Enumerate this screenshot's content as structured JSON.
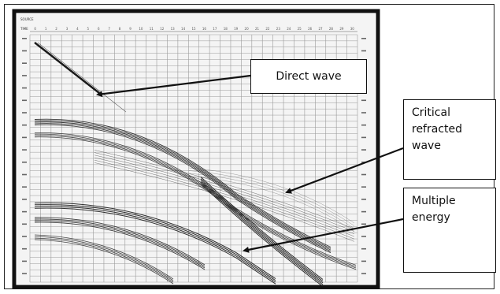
{
  "figure": {
    "top_ruler_label": "SOURCE",
    "second_ruler_label": "TIME",
    "top_ticks": [
      "0",
      "1",
      "2",
      "3",
      "4",
      "5",
      "6",
      "7",
      "8",
      "9",
      "10",
      "11",
      "12",
      "13",
      "14",
      "15",
      "16",
      "17",
      "18",
      "19",
      "20",
      "21",
      "22",
      "23",
      "24",
      "25",
      "26",
      "27",
      "28",
      "29",
      "30"
    ],
    "colors": {
      "ink": "#1a1a1a",
      "grid": "#9a9a9a",
      "panel": "#f2f2f2",
      "annotation": "#111111"
    }
  },
  "annotations": {
    "direct_wave": "Direct wave",
    "critical_refracted_wave": "Critical refracted wave",
    "multiple_energy": "Multiple energy"
  }
}
